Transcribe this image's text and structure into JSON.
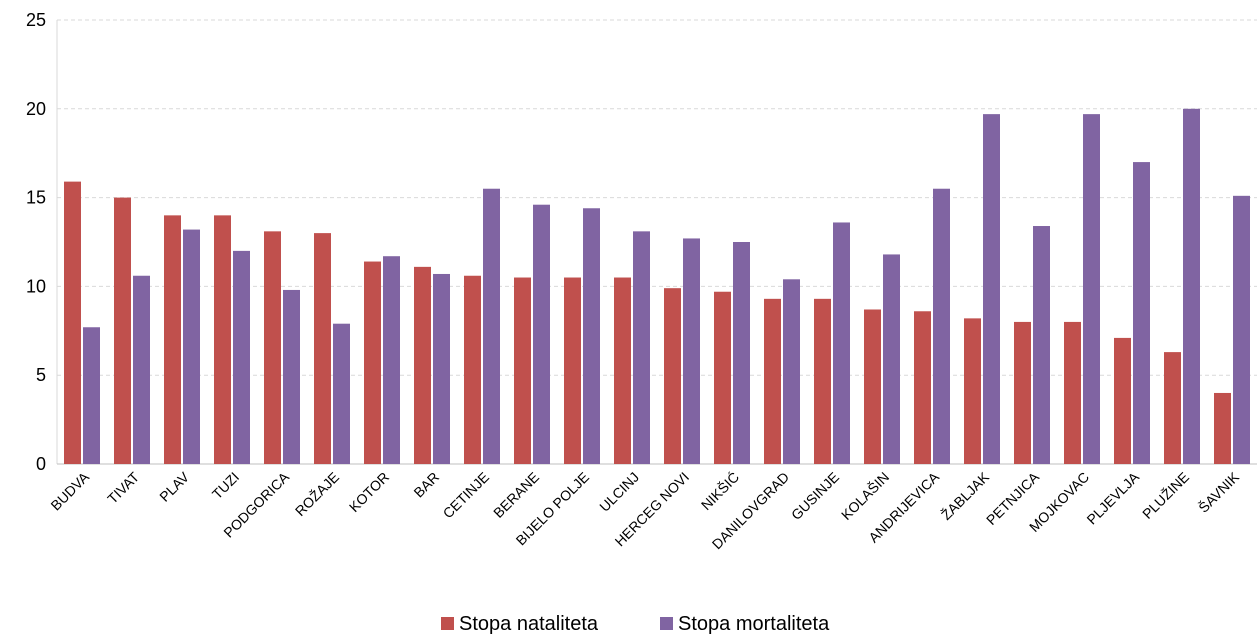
{
  "chart_data": {
    "type": "bar",
    "categories": [
      "BUDVA",
      "TIVAT",
      "PLAV",
      "TUZI",
      "PODGORICA",
      "ROŽAJE",
      "KOTOR",
      "BAR",
      "CETINJE",
      "BERANE",
      "BIJELO POLJE",
      "ULCINJ",
      "HERCEG NOVI",
      "NIKŠIĆ",
      "DANILOVGRAD",
      "GUSINJE",
      "KOLAŠIN",
      "ANDRIJEVICA",
      "ŽABLJAK",
      "PETNJICA",
      "MOJKOVAC",
      "PLJEVLJA",
      "PLUŽINE",
      "ŠAVNIK"
    ],
    "series": [
      {
        "name": "Stopa nataliteta",
        "color": "#c0504d",
        "values": [
          15.9,
          15.0,
          14.0,
          14.0,
          13.1,
          13.0,
          11.4,
          11.1,
          10.6,
          10.5,
          10.5,
          10.5,
          9.9,
          9.7,
          9.3,
          9.3,
          8.7,
          8.6,
          8.2,
          8.0,
          8.0,
          7.1,
          6.3,
          4.0
        ]
      },
      {
        "name": "Stopa mortaliteta",
        "color": "#8064a2",
        "values": [
          7.7,
          10.6,
          13.2,
          12.0,
          9.8,
          7.9,
          11.7,
          10.7,
          15.5,
          14.6,
          14.4,
          13.1,
          12.7,
          12.5,
          10.4,
          13.6,
          11.8,
          15.5,
          19.7,
          13.4,
          19.7,
          17.0,
          20.0,
          15.1
        ]
      }
    ],
    "yticks": [
      "0",
      "5",
      "10",
      "15",
      "20",
      "25"
    ],
    "ylim": [
      0,
      25
    ],
    "grid": true,
    "legend": "bottom-center",
    "title": "",
    "xlabel": "",
    "ylabel": ""
  }
}
